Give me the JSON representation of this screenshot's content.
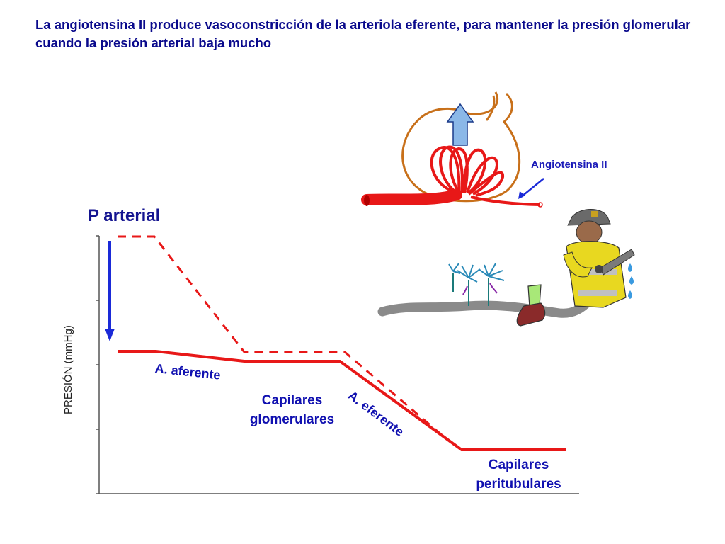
{
  "title": "La angiotensina II produce vasoconstricción de la arteriola eferente, para mantener la presión glomerular cuando la presión arterial baja mucho",
  "labels": {
    "p_arterial": "P arterial",
    "angiotensin": "Angiotensina II",
    "y_axis": "PRESIÓN (mmHg)",
    "afferent": "A. aferente",
    "glomerular_line1": "Capilares",
    "glomerular_line2": "glomerulares",
    "efferent": "A. eferente",
    "peritubular_line1": "Capilares",
    "peritubular_line2": "peritubulares"
  },
  "colors": {
    "text_blue": "#1010b0",
    "pressure_red": "#e81818",
    "arrow_blue": "#1a2ad8",
    "capsule_brown": "#c8701a"
  },
  "icons": [
    "glomerulus-illustration",
    "firefighter-icon",
    "water-hose-icon",
    "flower-icon",
    "boot-icon",
    "water-drop-icon"
  ]
}
